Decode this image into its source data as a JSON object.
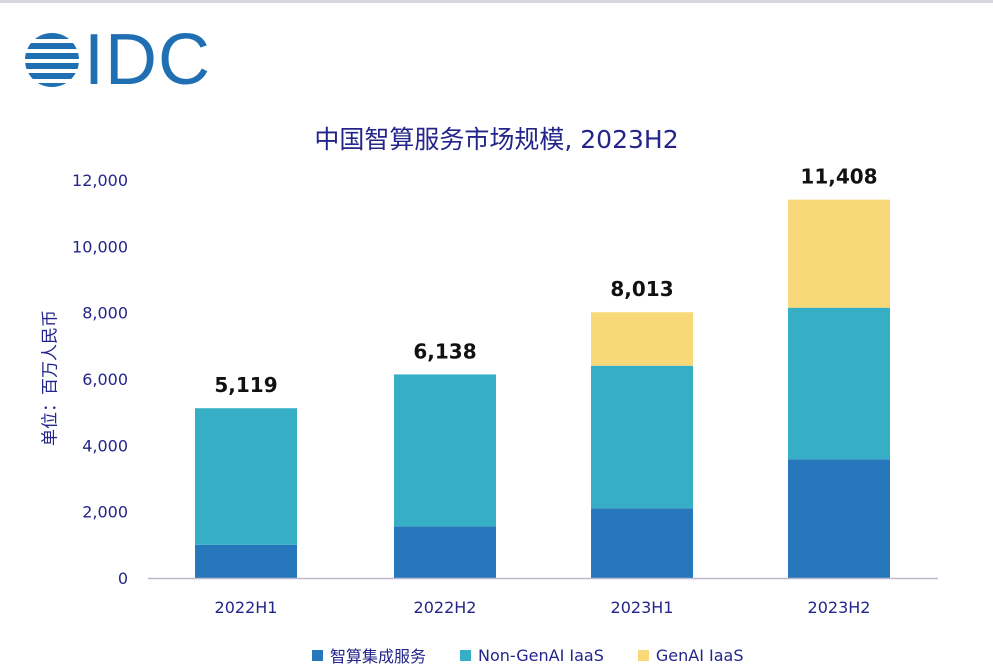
{
  "brand": {
    "logo_text": "IDC",
    "logo_color": "#1f6fb2"
  },
  "chart_data": {
    "type": "bar",
    "stacked": true,
    "title": "中国智算服务市场规模, 2023H2",
    "ylabel": "单位：百万人民币",
    "xlabel": "",
    "categories": [
      "2022H1",
      "2022H2",
      "2023H1",
      "2023H2"
    ],
    "series": [
      {
        "name": "智算集成服务",
        "color": "#2677bb",
        "values": [
          1000,
          1560,
          2100,
          3580
        ]
      },
      {
        "name": "Non-GenAI IaaS",
        "color": "#35aec6",
        "values": [
          4119,
          4578,
          4300,
          4570
        ]
      },
      {
        "name": "GenAI IaaS",
        "color": "#f7d97a",
        "values": [
          0,
          0,
          1613,
          3258
        ]
      }
    ],
    "totals": [
      "5,119",
      "6,138",
      "8,013",
      "11,408"
    ],
    "ylim": [
      0,
      12000
    ],
    "yticks": [
      "0",
      "2,000",
      "4,000",
      "6,000",
      "8,000",
      "10,000",
      "12,000"
    ],
    "grid": false,
    "legend": "bottom"
  }
}
